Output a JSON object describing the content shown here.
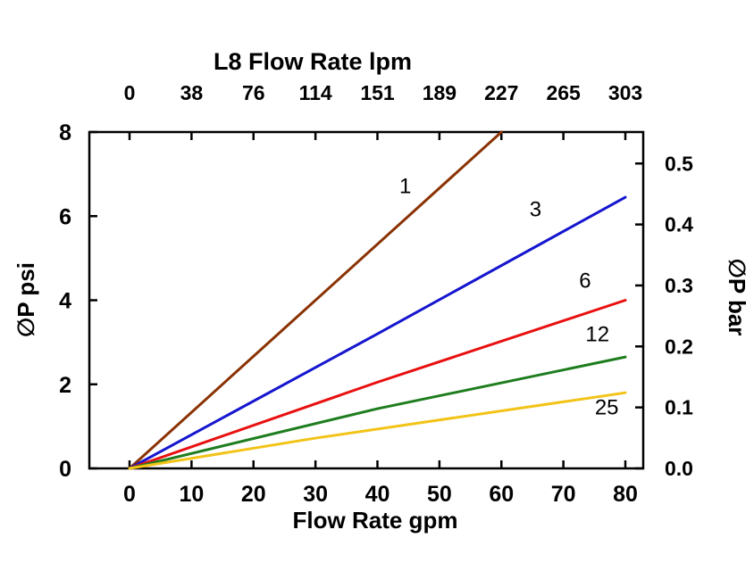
{
  "chart_data": {
    "type": "line",
    "title": "L8 Flow Rate lpm",
    "xlabel": "Flow Rate gpm",
    "ylabel_left": "∅P psi",
    "ylabel_right": "∅P bar",
    "x_axis_bottom": {
      "label": "Flow Rate gpm",
      "unit": "gpm",
      "ticks": [
        0,
        10,
        20,
        30,
        40,
        50,
        60,
        70,
        80
      ],
      "range": [
        0,
        80
      ]
    },
    "x_axis_top": {
      "label": "L8 Flow Rate lpm",
      "unit": "lpm",
      "ticks": [
        0,
        38,
        76,
        114,
        151,
        189,
        227,
        265,
        303
      ],
      "range": [
        0,
        303
      ]
    },
    "y_axis_left": {
      "label": "∅P psi",
      "unit": "psi",
      "ticks": [
        0,
        2,
        4,
        6,
        8
      ],
      "range": [
        0,
        8
      ]
    },
    "y_axis_right": {
      "label": "∅P bar",
      "unit": "bar",
      "ticks": [
        "0.0",
        "0.1",
        "0.2",
        "0.3",
        "0.4",
        "0.5"
      ],
      "range": [
        0,
        0.5516
      ]
    },
    "grid": false,
    "legend": "inline-labels",
    "series": [
      {
        "name": "1",
        "color": "#8a3203",
        "points": [
          [
            0,
            0
          ],
          [
            60,
            8.0
          ]
        ],
        "label_at": [
          44.5,
          6.55
        ]
      },
      {
        "name": "3",
        "color": "#1515cf",
        "points": [
          [
            0,
            0
          ],
          [
            40,
            3.2
          ],
          [
            80,
            6.45
          ]
        ],
        "label_at": [
          65.5,
          6.0
        ]
      },
      {
        "name": "6",
        "color": "#e81010",
        "points": [
          [
            0,
            0
          ],
          [
            40,
            2.05
          ],
          [
            80,
            4.0
          ]
        ],
        "label_at": [
          73.5,
          4.3
        ]
      },
      {
        "name": "12",
        "color": "#1e7d1e",
        "points": [
          [
            0,
            0
          ],
          [
            40,
            1.42
          ],
          [
            80,
            2.65
          ]
        ],
        "label_at": [
          75.5,
          3.02
        ]
      },
      {
        "name": "25",
        "color": "#f2c318",
        "points": [
          [
            0,
            0
          ],
          [
            30,
            0.72
          ],
          [
            80,
            1.8
          ]
        ],
        "label_at": [
          77.0,
          1.28
        ]
      }
    ]
  }
}
